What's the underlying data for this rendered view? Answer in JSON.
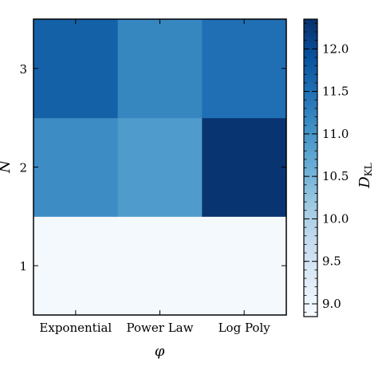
{
  "chart_data": {
    "type": "heatmap",
    "title": "",
    "xlabel": "φ",
    "ylabel": "N",
    "colorbar_label": "D_KL",
    "x_categories": [
      "Exponential",
      "Power Law",
      "Log Poly"
    ],
    "y_categories": [
      "1",
      "2",
      "3"
    ],
    "values": [
      [
        8.9,
        8.9,
        8.9
      ],
      [
        11.1,
        10.9,
        12.3
      ],
      [
        11.7,
        11.2,
        11.5
      ]
    ],
    "color_range": [
      8.85,
      12.35
    ],
    "colorbar_ticks": [
      "9.0",
      "9.5",
      "10.0",
      "10.5",
      "11.0",
      "11.5",
      "12.0"
    ],
    "colormap": "Blues",
    "grid": false
  }
}
